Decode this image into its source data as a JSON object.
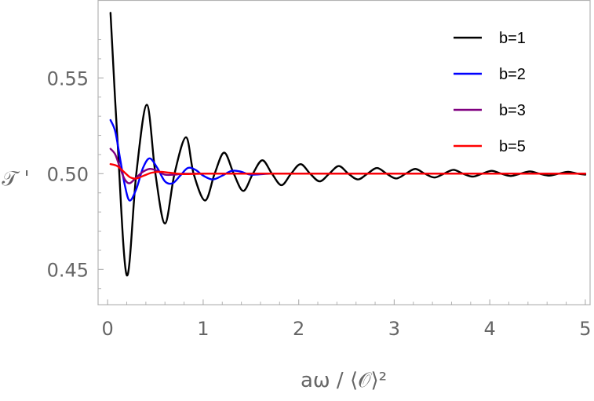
{
  "chart_data": {
    "type": "line",
    "title": "",
    "xlabel": "aω / ⟨𝒪⟩²",
    "ylabel": "𝒯 '",
    "xlim": [
      -0.1,
      5.05
    ],
    "ylim": [
      0.4315,
      0.5905
    ],
    "x_ticks": [
      0,
      1,
      2,
      3,
      4,
      5
    ],
    "x_tick_labels": [
      "0",
      "1",
      "2",
      "3",
      "4",
      "5"
    ],
    "y_ticks": [
      0.45,
      0.5,
      0.55
    ],
    "y_tick_labels": [
      "0.45",
      "0.50",
      "0.55"
    ],
    "grid": false,
    "legend_position": "top-right",
    "series": [
      {
        "name": "b=1",
        "color": "#000000",
        "x": [
          0.03,
          0.1,
          0.2,
          0.3,
          0.41,
          0.5,
          0.6,
          0.7,
          0.82,
          0.9,
          1.02,
          1.12,
          1.22,
          1.32,
          1.42,
          1.52,
          1.62,
          1.72,
          1.82,
          1.92,
          2.02,
          2.12,
          2.22,
          2.32,
          2.42,
          2.52,
          2.62,
          2.72,
          2.82,
          2.92,
          3.02,
          3.12,
          3.22,
          3.32,
          3.42,
          3.52,
          3.62,
          3.72,
          3.82,
          3.92,
          4.02,
          4.12,
          4.22,
          4.32,
          4.42,
          4.52,
          4.62,
          4.72,
          4.82,
          4.92,
          5.0
        ],
        "y": [
          0.584,
          0.52,
          0.447,
          0.5,
          0.536,
          0.5,
          0.474,
          0.5,
          0.519,
          0.5,
          0.486,
          0.5,
          0.511,
          0.5,
          0.491,
          0.5,
          0.507,
          0.5,
          0.494,
          0.5,
          0.505,
          0.5,
          0.496,
          0.5,
          0.504,
          0.5,
          0.497,
          0.5,
          0.503,
          0.5,
          0.4975,
          0.5,
          0.5025,
          0.5,
          0.498,
          0.5,
          0.502,
          0.5,
          0.4985,
          0.5,
          0.5015,
          0.5,
          0.4988,
          0.5,
          0.5012,
          0.5,
          0.499,
          0.5,
          0.501,
          0.5,
          0.4995
        ]
      },
      {
        "name": "b=2",
        "color": "#0000ff",
        "x": [
          0.03,
          0.08,
          0.13,
          0.18,
          0.23,
          0.3,
          0.37,
          0.44,
          0.52,
          0.6,
          0.68,
          0.76,
          0.84,
          0.92,
          1.0,
          1.1,
          1.2,
          1.3,
          1.4,
          1.5,
          1.7,
          2.0,
          3.0,
          4.0,
          5.0
        ],
        "y": [
          0.528,
          0.522,
          0.508,
          0.494,
          0.486,
          0.492,
          0.503,
          0.508,
          0.503,
          0.496,
          0.495,
          0.499,
          0.503,
          0.502,
          0.499,
          0.497,
          0.499,
          0.5015,
          0.501,
          0.4995,
          0.5,
          0.5,
          0.5,
          0.5,
          0.5
        ]
      },
      {
        "name": "b=3",
        "color": "#800080",
        "x": [
          0.03,
          0.08,
          0.13,
          0.18,
          0.23,
          0.3,
          0.37,
          0.44,
          0.52,
          0.6,
          0.7,
          0.8,
          1.0,
          1.5,
          2.0,
          3.0,
          4.0,
          5.0
        ],
        "y": [
          0.513,
          0.51,
          0.503,
          0.497,
          0.495,
          0.498,
          0.501,
          0.5025,
          0.5015,
          0.4995,
          0.4995,
          0.5,
          0.5,
          0.5,
          0.5,
          0.5,
          0.5,
          0.5
        ]
      },
      {
        "name": "b=5",
        "color": "#ff0000",
        "x": [
          0.03,
          0.1,
          0.18,
          0.24,
          0.3,
          0.38,
          0.46,
          0.55,
          0.65,
          0.8,
          1.0,
          1.5,
          2.0,
          3.0,
          4.0,
          5.0
        ],
        "y": [
          0.505,
          0.504,
          0.5005,
          0.498,
          0.4975,
          0.499,
          0.5005,
          0.501,
          0.5005,
          0.4998,
          0.5,
          0.5,
          0.5,
          0.5,
          0.5,
          0.5
        ]
      }
    ]
  }
}
